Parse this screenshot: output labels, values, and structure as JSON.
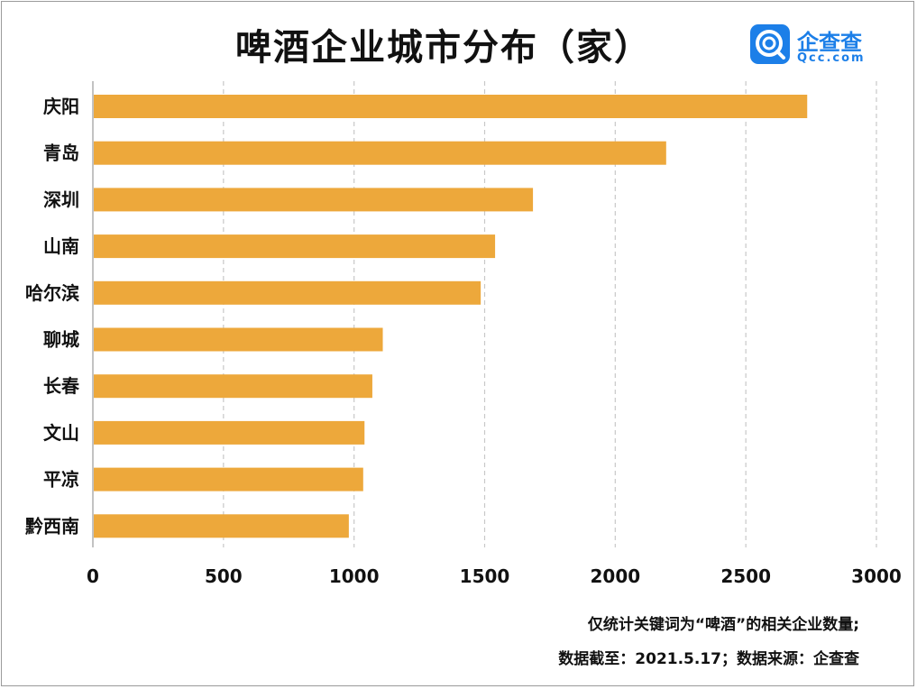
{
  "header": {
    "title": "啤酒企业城市分布（家）"
  },
  "logo": {
    "name": "企查查",
    "domain": "Qcc.com"
  },
  "footer": {
    "note_line1": "仅统计关键词为“啤酒”的相关企业数量;",
    "note_line2": "数据截至：2021.5.17；数据来源：企查查"
  },
  "colors": {
    "bar": "#eda83b",
    "grid": "#c8c8c8",
    "logo": "#1c7fe8"
  },
  "chart_data": {
    "type": "bar",
    "orientation": "horizontal",
    "title": "啤酒企业城市分布（家）",
    "categories": [
      "庆阳",
      "青岛",
      "深圳",
      "山南",
      "哈尔滨",
      "聊城",
      "长春",
      "文山",
      "平凉",
      "黔西南"
    ],
    "values": [
      2735,
      2195,
      1685,
      1540,
      1485,
      1110,
      1070,
      1040,
      1035,
      980
    ],
    "xlabel": "",
    "ylabel": "",
    "xlim": [
      0,
      3000
    ],
    "xticks": [
      0,
      500,
      1000,
      1500,
      2000,
      2500,
      3000
    ],
    "grid": "vertical dashed",
    "legend": "none"
  }
}
